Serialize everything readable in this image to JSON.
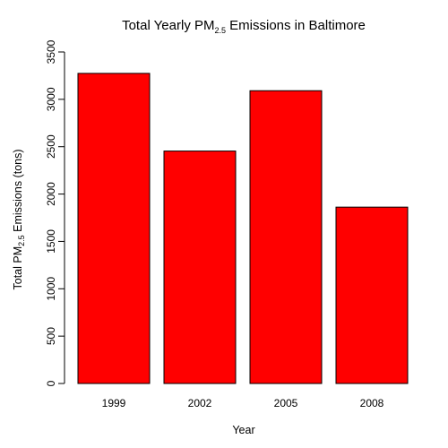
{
  "chart_data": {
    "type": "bar",
    "title": {
      "prefix": "Total Yearly PM",
      "subscript": "2.5",
      "suffix": " Emissions in Baltimore"
    },
    "xlabel": "Year",
    "ylabel": {
      "prefix": "Total PM",
      "subscript": "2.5",
      "suffix": " Emissions (tons)"
    },
    "categories": [
      "1999",
      "2002",
      "2005",
      "2008"
    ],
    "values": [
      3274,
      2454,
      3091,
      1862
    ],
    "ylim": [
      0,
      3500
    ],
    "yticks": [
      "0",
      "500",
      "1000",
      "1500",
      "2000",
      "2500",
      "3000",
      "3500"
    ],
    "bar_color": "#ff0000",
    "grid": false
  }
}
